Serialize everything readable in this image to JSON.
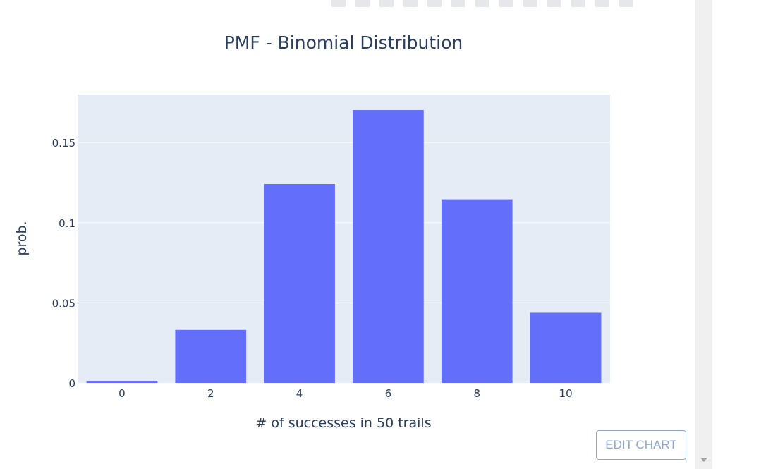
{
  "chart_data": {
    "type": "bar",
    "title": "PMF - Binomial Distribution",
    "xlabel": "# of successes in 50 trails",
    "ylabel": "prob.",
    "categories": [
      0,
      2,
      4,
      6,
      8,
      10
    ],
    "values": [
      0.0013,
      0.0331,
      0.1241,
      0.1703,
      0.1146,
      0.0438
    ],
    "x_ticks": [
      "0",
      "2",
      "4",
      "6",
      "8",
      "10"
    ],
    "y_ticks": [
      {
        "value": 0,
        "label": "0"
      },
      {
        "value": 0.05,
        "label": "0.05"
      },
      {
        "value": 0.1,
        "label": "0.1"
      },
      {
        "value": 0.15,
        "label": "0.15"
      }
    ],
    "ylim": [
      0,
      0.18
    ],
    "grid": true,
    "legend": "none",
    "colors": {
      "bar": "#636efa",
      "plot_bg": "#e5ecf6",
      "grid": "#ffffff",
      "text": "#2a3f5f"
    }
  },
  "edit_chart_label": "EDIT CHART"
}
